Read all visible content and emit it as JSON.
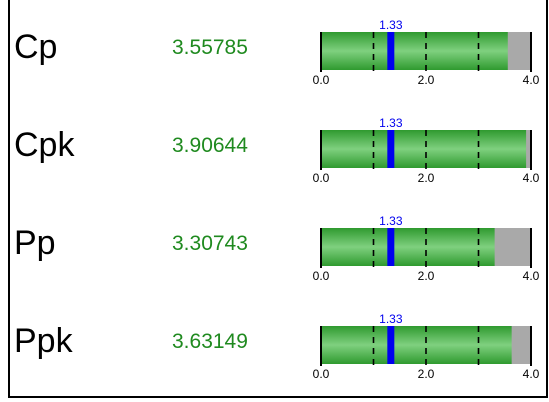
{
  "colors": {
    "value_text": "#1f8a1f",
    "bar_fill": "#3fae3f",
    "bar_rest": "#a9a9a9",
    "marker": "#0000ee",
    "marker_label": "#0000ee"
  },
  "scale": {
    "min": 0.0,
    "max": 4.0,
    "ticks": [
      0.0,
      1.0,
      2.0,
      3.0,
      4.0
    ],
    "tick_labels": [
      "0.0",
      "2.0",
      "4.0"
    ],
    "marker": 1.33,
    "marker_label": "1.33"
  },
  "rows": [
    {
      "label": "Cp",
      "value": "3.55785",
      "fill": 3.55785
    },
    {
      "label": "Cpk",
      "value": "3.90644",
      "fill": 3.90644
    },
    {
      "label": "Pp",
      "value": "3.30743",
      "fill": 3.30743
    },
    {
      "label": "Ppk",
      "value": "3.63149",
      "fill": 3.63149
    }
  ]
}
